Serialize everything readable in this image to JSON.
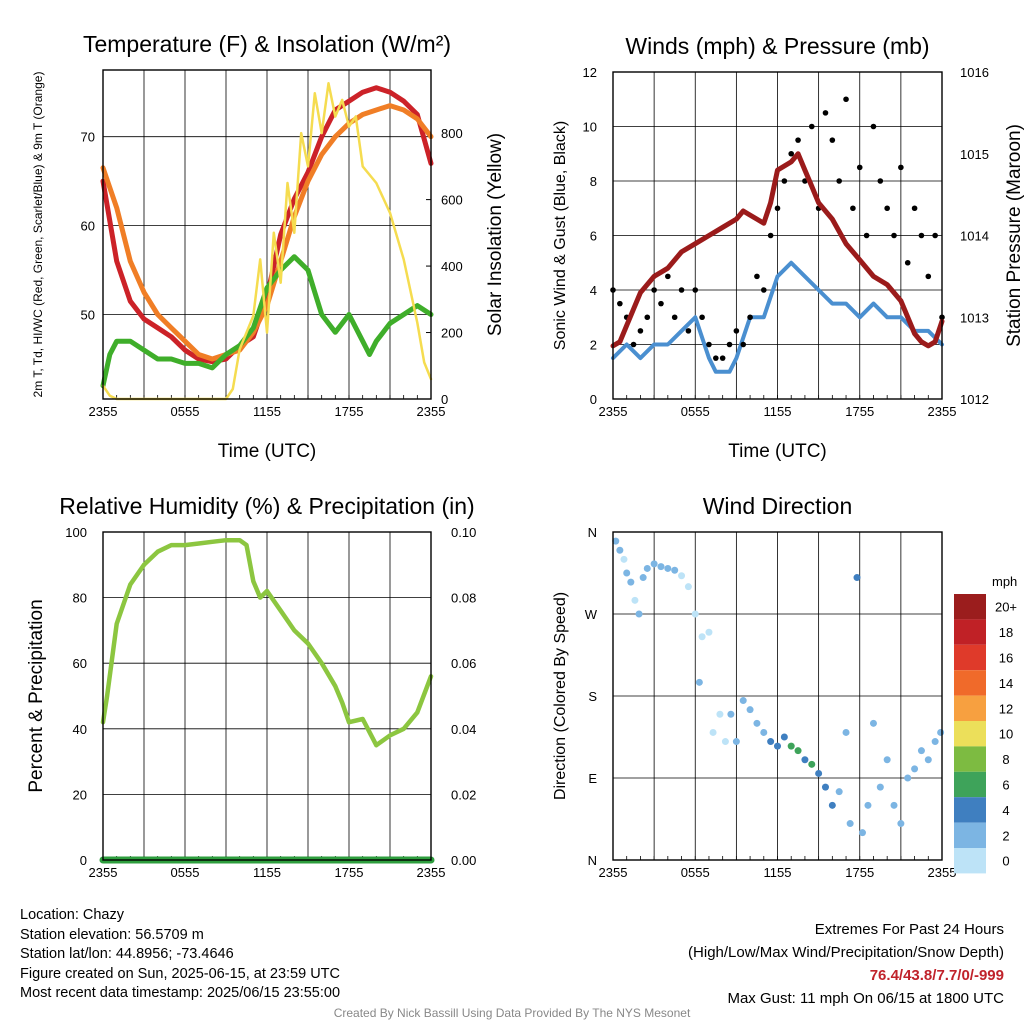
{
  "charts": [
    {
      "type": "line",
      "title": "Temperature (F) & Insolation (W/m²)",
      "xlabel": "Time (UTC)",
      "ylabel": "2m T, Td, HI/WC (Red, Green, Scarlet/Blue) & 9m T (Orange)",
      "ylabel_right": "Solar Insolation (Yellow)",
      "x_ticks": [
        "2355",
        "0555",
        "1155",
        "1755",
        "2355"
      ],
      "y_ticks": [
        50,
        60,
        70
      ],
      "ylim": [
        40.5,
        77.5
      ],
      "y_right_ticks": [
        0,
        200,
        400,
        600,
        800
      ],
      "ylim_right": [
        0,
        990
      ],
      "colors": {
        "temp": "#cc2228",
        "dewpoint": "#3fae2a",
        "nine_m": "#f07e26",
        "solar": "#f5dc50"
      },
      "series": [
        {
          "key": "temp",
          "x": [
            0,
            1,
            2,
            3,
            4,
            5,
            6,
            7,
            8,
            9,
            10,
            11,
            12,
            13,
            14,
            15,
            16,
            17,
            18,
            19,
            20,
            21,
            22,
            23,
            24
          ],
          "values": [
            65,
            56,
            51.5,
            49.5,
            48.5,
            47.5,
            46,
            45,
            44.7,
            45,
            46.5,
            47.5,
            52,
            59,
            63,
            66,
            70,
            73,
            74,
            75,
            75.5,
            75,
            74,
            72.5,
            67
          ]
        },
        {
          "key": "nine_m",
          "x": [
            0,
            1,
            2,
            3,
            4,
            5,
            6,
            7,
            8,
            9,
            10,
            11,
            12,
            13,
            14,
            15,
            16,
            17,
            18,
            19,
            20,
            21,
            22,
            23,
            24
          ],
          "values": [
            66.5,
            62,
            56,
            52.5,
            50,
            48.5,
            47,
            45.5,
            45,
            45.5,
            46,
            48,
            51,
            56,
            61,
            65,
            68,
            70,
            71.5,
            72.5,
            73,
            73.5,
            73,
            72,
            70
          ]
        },
        {
          "key": "dewpoint",
          "x": [
            0,
            0.5,
            1,
            2,
            3,
            4,
            5,
            6,
            7,
            8,
            9,
            10,
            11,
            12,
            13,
            14,
            15,
            15.5,
            16,
            17,
            18,
            19,
            19.5,
            20,
            21,
            22,
            23,
            24
          ],
          "values": [
            42,
            45.5,
            47,
            47,
            46,
            45,
            45,
            44.5,
            44.5,
            44,
            45.5,
            46.5,
            48.5,
            53,
            55,
            56.5,
            55,
            52.5,
            50,
            48,
            50,
            47,
            45.5,
            47,
            49,
            50,
            51,
            50
          ]
        },
        {
          "key": "solar",
          "axis": "right",
          "x": [
            0,
            0.5,
            1,
            2,
            3,
            4,
            5,
            6,
            7,
            8,
            9,
            9.5,
            10,
            11,
            11.5,
            12,
            12.5,
            13,
            13.5,
            14,
            14.5,
            15,
            15.5,
            16,
            16.5,
            17,
            17.5,
            18,
            18.5,
            19,
            20,
            21,
            22,
            23,
            23.5,
            24
          ],
          "values": [
            40,
            10,
            0,
            0,
            0,
            0,
            0,
            0,
            0,
            0,
            0,
            30,
            150,
            250,
            420,
            200,
            500,
            350,
            650,
            500,
            800,
            700,
            920,
            800,
            950,
            850,
            900,
            820,
            850,
            700,
            650,
            560,
            420,
            230,
            110,
            60
          ]
        }
      ]
    },
    {
      "type": "line",
      "title": "Winds (mph) & Pressure (mb)",
      "xlabel": "Time (UTC)",
      "ylabel": "Sonic Wind & Gust (Blue, Black)",
      "ylabel_right": "Station Pressure (Maroon)",
      "x_ticks": [
        "2355",
        "0555",
        "1155",
        "1755",
        "2355"
      ],
      "y_ticks": [
        0,
        2,
        4,
        6,
        8,
        10,
        12
      ],
      "ylim": [
        0,
        12
      ],
      "y_right_ticks": [
        1012,
        1013,
        1014,
        1015,
        1016
      ],
      "ylim_right": [
        1012,
        1016
      ],
      "colors": {
        "wind": "#4a8fd0",
        "gust": "#000000",
        "pressure": "#9b1b1b"
      },
      "series": [
        {
          "key": "wind",
          "x": [
            0,
            1,
            2,
            3,
            4,
            5,
            6,
            7,
            7.5,
            8,
            8.5,
            9,
            10,
            11,
            12,
            13,
            14,
            15,
            16,
            17,
            18,
            19,
            20,
            21,
            22,
            23,
            24
          ],
          "values": [
            1.5,
            2,
            1.5,
            2,
            2,
            2.5,
            3,
            1.5,
            1,
            1,
            1,
            1.5,
            3,
            3,
            4.5,
            5,
            4.5,
            4,
            3.5,
            3.5,
            3,
            3.5,
            3,
            3,
            2.5,
            2.5,
            2
          ]
        },
        {
          "key": "gust",
          "x": [
            0,
            0.5,
            1,
            1.5,
            2,
            2.5,
            3,
            3.5,
            4,
            4.5,
            5,
            5.5,
            6,
            6.5,
            7,
            7.5,
            8,
            8.5,
            9,
            9.5,
            10,
            10.5,
            11,
            11.5,
            12,
            12.5,
            13,
            13.5,
            14,
            14.5,
            15,
            15.5,
            16,
            16.5,
            17,
            17.5,
            18,
            18.5,
            19,
            19.5,
            20,
            20.5,
            21,
            21.5,
            22,
            22.5,
            23,
            23.5,
            24
          ],
          "values": [
            4,
            3.5,
            3,
            2,
            2.5,
            3,
            4,
            3.5,
            4.5,
            3,
            4,
            2.5,
            4,
            3,
            2,
            1.5,
            1.5,
            2,
            2.5,
            2,
            3,
            4.5,
            4,
            6,
            7,
            8,
            9,
            9.5,
            8,
            10,
            7,
            10.5,
            9.5,
            8,
            11,
            7,
            8.5,
            6,
            10,
            8,
            7,
            6,
            8.5,
            5,
            7,
            6,
            4.5,
            6,
            3
          ]
        },
        {
          "key": "pressure",
          "axis": "right",
          "x": [
            0,
            0.5,
            1,
            2,
            3,
            4,
            5,
            6,
            7,
            8,
            9,
            9.5,
            10,
            10.5,
            11,
            11.5,
            12,
            13,
            13.5,
            14,
            14.5,
            15,
            16,
            17,
            18,
            19,
            20,
            21,
            22,
            22.5,
            23,
            23.5,
            24
          ],
          "values": [
            1012.65,
            1012.7,
            1012.9,
            1013.3,
            1013.5,
            1013.6,
            1013.8,
            1013.9,
            1014,
            1014.1,
            1014.2,
            1014.3,
            1014.25,
            1014.2,
            1014.15,
            1014.4,
            1014.8,
            1014.9,
            1015,
            1014.8,
            1014.6,
            1014.4,
            1014.2,
            1013.9,
            1013.7,
            1013.5,
            1013.4,
            1013.2,
            1012.8,
            1012.7,
            1012.65,
            1012.7,
            1012.95
          ]
        }
      ]
    },
    {
      "type": "line",
      "title": "Relative Humidity (%) & Precipitation (in)",
      "xlabel": "",
      "ylabel": "Percent & Precipitation",
      "x_ticks": [
        "2355",
        "0555",
        "1155",
        "1755",
        "2355"
      ],
      "y_ticks": [
        0,
        20,
        40,
        60,
        80,
        100
      ],
      "ylim": [
        0,
        100
      ],
      "y_right_ticks": [
        "0.00",
        "0.02",
        "0.04",
        "0.06",
        "0.08",
        "0.10"
      ],
      "ylim_right": [
        0,
        0.1
      ],
      "colors": {
        "rh": "#8cc640",
        "precip": "#2e9e3e"
      },
      "series": [
        {
          "key": "rh",
          "x": [
            0,
            0.3,
            1,
            2,
            3,
            4,
            5,
            6,
            7,
            8,
            9,
            10,
            10.5,
            11,
            11.5,
            12,
            13,
            14,
            15,
            16,
            17,
            17.5,
            18,
            19,
            20,
            21,
            22,
            23,
            24
          ],
          "values": [
            42,
            50,
            72,
            84,
            90,
            94,
            96,
            96,
            96.5,
            97,
            97.5,
            97.5,
            96,
            85,
            80,
            82,
            76,
            70,
            66,
            60,
            53,
            48,
            42,
            43,
            35,
            38,
            40,
            45,
            56
          ]
        },
        {
          "key": "precip",
          "axis": "right",
          "x": [
            0,
            24
          ],
          "values": [
            0,
            0
          ]
        }
      ]
    },
    {
      "type": "scatter",
      "title": "Wind Direction",
      "xlabel": "",
      "ylabel": "Direction (Colored By Speed)",
      "x_ticks": [
        "2355",
        "0555",
        "1155",
        "1755",
        "2355"
      ],
      "y_ticks": [
        "N",
        "E",
        "S",
        "W",
        "N"
      ],
      "ylim": [
        0,
        360
      ],
      "colorbar": {
        "title": "mph",
        "labels": [
          "20+",
          "18",
          "16",
          "14",
          "12",
          "10",
          "8",
          "6",
          "4",
          "2",
          "0"
        ],
        "colors": [
          "#9b1d1d",
          "#c02126",
          "#df3a2a",
          "#f06a2a",
          "#f7a040",
          "#ecdf5a",
          "#7dbb41",
          "#3ea35a",
          "#3f7fc0",
          "#7cb5e3",
          "#bde3f7"
        ]
      },
      "points": [
        {
          "x": 0.2,
          "dir": 350,
          "speed": 2
        },
        {
          "x": 0.5,
          "dir": 340,
          "speed": 2
        },
        {
          "x": 0.8,
          "dir": 330,
          "speed": 1
        },
        {
          "x": 1.0,
          "dir": 315,
          "speed": 2
        },
        {
          "x": 1.3,
          "dir": 305,
          "speed": 3
        },
        {
          "x": 1.6,
          "dir": 285,
          "speed": 1
        },
        {
          "x": 1.9,
          "dir": 270,
          "speed": 2
        },
        {
          "x": 2.2,
          "dir": 310,
          "speed": 2
        },
        {
          "x": 2.5,
          "dir": 320,
          "speed": 2
        },
        {
          "x": 3.0,
          "dir": 325,
          "speed": 2
        },
        {
          "x": 3.5,
          "dir": 322,
          "speed": 2
        },
        {
          "x": 4.0,
          "dir": 320,
          "speed": 2
        },
        {
          "x": 4.5,
          "dir": 318,
          "speed": 2
        },
        {
          "x": 5.0,
          "dir": 312,
          "speed": 1
        },
        {
          "x": 5.5,
          "dir": 300,
          "speed": 1
        },
        {
          "x": 6.0,
          "dir": 270,
          "speed": 1
        },
        {
          "x": 6.3,
          "dir": 195,
          "speed": 2
        },
        {
          "x": 6.5,
          "dir": 245,
          "speed": 1
        },
        {
          "x": 7.0,
          "dir": 250,
          "speed": 1
        },
        {
          "x": 7.3,
          "dir": 140,
          "speed": 1
        },
        {
          "x": 7.8,
          "dir": 160,
          "speed": 1
        },
        {
          "x": 8.2,
          "dir": 130,
          "speed": 1
        },
        {
          "x": 8.6,
          "dir": 160,
          "speed": 2
        },
        {
          "x": 9.0,
          "dir": 130,
          "speed": 2
        },
        {
          "x": 9.5,
          "dir": 175,
          "speed": 3
        },
        {
          "x": 10.0,
          "dir": 165,
          "speed": 3
        },
        {
          "x": 10.5,
          "dir": 150,
          "speed": 3
        },
        {
          "x": 11.0,
          "dir": 140,
          "speed": 3
        },
        {
          "x": 11.5,
          "dir": 130,
          "speed": 4
        },
        {
          "x": 12.0,
          "dir": 125,
          "speed": 4
        },
        {
          "x": 12.5,
          "dir": 135,
          "speed": 5
        },
        {
          "x": 13.0,
          "dir": 125,
          "speed": 6
        },
        {
          "x": 13.5,
          "dir": 120,
          "speed": 7
        },
        {
          "x": 14.0,
          "dir": 110,
          "speed": 5
        },
        {
          "x": 14.5,
          "dir": 105,
          "speed": 6
        },
        {
          "x": 15.0,
          "dir": 95,
          "speed": 4
        },
        {
          "x": 15.5,
          "dir": 80,
          "speed": 4
        },
        {
          "x": 16.0,
          "dir": 60,
          "speed": 4
        },
        {
          "x": 16.5,
          "dir": 75,
          "speed": 3
        },
        {
          "x": 17.0,
          "dir": 140,
          "speed": 3
        },
        {
          "x": 17.3,
          "dir": 40,
          "speed": 2
        },
        {
          "x": 17.8,
          "dir": 310,
          "speed": 4
        },
        {
          "x": 18.2,
          "dir": 30,
          "speed": 3
        },
        {
          "x": 18.6,
          "dir": 60,
          "speed": 2
        },
        {
          "x": 19.0,
          "dir": 150,
          "speed": 3
        },
        {
          "x": 19.5,
          "dir": 80,
          "speed": 3
        },
        {
          "x": 20.0,
          "dir": 110,
          "speed": 3
        },
        {
          "x": 20.5,
          "dir": 60,
          "speed": 2
        },
        {
          "x": 21.0,
          "dir": 40,
          "speed": 2
        },
        {
          "x": 21.5,
          "dir": 90,
          "speed": 3
        },
        {
          "x": 22.0,
          "dir": 100,
          "speed": 2
        },
        {
          "x": 22.5,
          "dir": 120,
          "speed": 3
        },
        {
          "x": 23.0,
          "dir": 110,
          "speed": 3
        },
        {
          "x": 23.5,
          "dir": 130,
          "speed": 2
        },
        {
          "x": 23.9,
          "dir": 140,
          "speed": 2
        }
      ]
    }
  ],
  "info": {
    "location": "Location: Chazy",
    "elevation": "Station elevation: 56.5709 m",
    "latlon": "Station lat/lon: 44.8956; -73.4646",
    "created": "Figure created on Sun, 2025-06-15, at 23:59 UTC",
    "recent": "Most recent data timestamp: 2025/06/15 23:55:00"
  },
  "extremes": {
    "title": "Extremes For Past 24 Hours",
    "subtitle": "(High/Low/Max Wind/Precipitation/Snow Depth)",
    "values": "76.4/43.8/7.7/0/-999",
    "gust": "Max Gust: 11 mph On 06/15 at 1800 UTC"
  },
  "credit": "Created By Nick Bassill Using Data Provided By The NYS Mesonet"
}
